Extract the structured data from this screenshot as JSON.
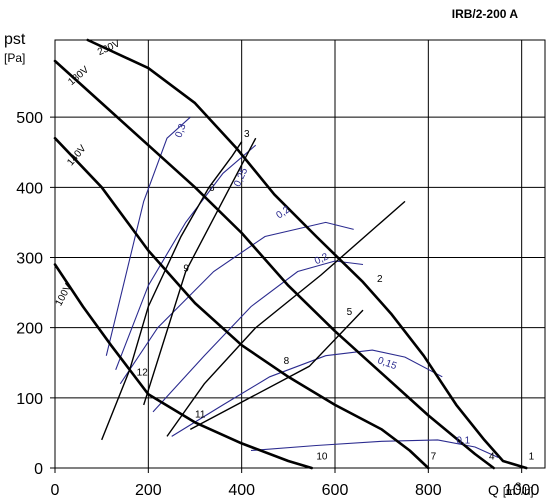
{
  "chart_data": {
    "type": "line",
    "title": "IRB/2-200 A",
    "ylabel": "pst",
    "ylabel_unit": "[Pa]",
    "xlabel": "Q",
    "xlabel_unit_prefix": "[m",
    "xlabel_unit_sup": "3",
    "xlabel_unit_suffix": "/h]",
    "xlim": [
      0,
      1050
    ],
    "ylim": [
      0,
      610
    ],
    "x_ticks": [
      0,
      200,
      400,
      600,
      800,
      1000
    ],
    "y_ticks": [
      0,
      100,
      200,
      300,
      400,
      500
    ],
    "grid": true,
    "fan_curves": [
      {
        "name": "230V",
        "points": [
          [
            70,
            610
          ],
          [
            200,
            570
          ],
          [
            300,
            520
          ],
          [
            390,
            455
          ],
          [
            470,
            390
          ],
          [
            560,
            330
          ],
          [
            660,
            265
          ],
          [
            720,
            220
          ],
          [
            790,
            160
          ],
          [
            860,
            90
          ],
          [
            920,
            40
          ],
          [
            960,
            10
          ],
          [
            1010,
            0
          ]
        ]
      },
      {
        "name": "180V",
        "points": [
          [
            0,
            580
          ],
          [
            100,
            520
          ],
          [
            200,
            460
          ],
          [
            300,
            400
          ],
          [
            400,
            335
          ],
          [
            500,
            260
          ],
          [
            600,
            195
          ],
          [
            700,
            135
          ],
          [
            800,
            75
          ],
          [
            900,
            20
          ],
          [
            940,
            0
          ]
        ]
      },
      {
        "name": "140V",
        "points": [
          [
            0,
            470
          ],
          [
            100,
            400
          ],
          [
            200,
            310
          ],
          [
            300,
            235
          ],
          [
            400,
            175
          ],
          [
            500,
            130
          ],
          [
            600,
            90
          ],
          [
            700,
            55
          ],
          [
            760,
            25
          ],
          [
            800,
            0
          ]
        ]
      },
      {
        "name": "100V",
        "points": [
          [
            0,
            290
          ],
          [
            60,
            230
          ],
          [
            120,
            175
          ],
          [
            200,
            105
          ],
          [
            300,
            65
          ],
          [
            400,
            35
          ],
          [
            500,
            10
          ],
          [
            550,
            0
          ]
        ]
      }
    ],
    "system_curves": [
      {
        "points": [
          [
            100,
            40
          ],
          [
            160,
            140
          ],
          [
            200,
            230
          ],
          [
            270,
            330
          ],
          [
            330,
            400
          ],
          [
            380,
            445
          ],
          [
            400,
            465
          ]
        ]
      },
      {
        "points": [
          [
            240,
            45
          ],
          [
            320,
            120
          ],
          [
            430,
            200
          ],
          [
            570,
            275
          ],
          [
            690,
            345
          ],
          [
            750,
            380
          ]
        ]
      }
    ],
    "system_lines": [
      {
        "points": [
          [
            430,
            470
          ],
          [
            280,
            280
          ],
          [
            190,
            90
          ]
        ]
      },
      {
        "points": [
          [
            660,
            225
          ],
          [
            545,
            145
          ],
          [
            290,
            55
          ]
        ]
      }
    ],
    "efficiency_curves": [
      {
        "name": "0,3",
        "points": [
          [
            110,
            160
          ],
          [
            150,
            270
          ],
          [
            190,
            380
          ],
          [
            240,
            470
          ],
          [
            290,
            500
          ]
        ]
      },
      {
        "name": "0,25",
        "points": [
          [
            130,
            140
          ],
          [
            200,
            260
          ],
          [
            280,
            350
          ],
          [
            360,
            420
          ],
          [
            430,
            460
          ]
        ]
      },
      {
        "name": "0,2",
        "points": [
          [
            140,
            120
          ],
          [
            220,
            200
          ],
          [
            340,
            280
          ],
          [
            450,
            330
          ],
          [
            580,
            350
          ],
          [
            640,
            340
          ]
        ]
      },
      {
        "name": "0,2",
        "points": [
          [
            210,
            80
          ],
          [
            320,
            160
          ],
          [
            420,
            230
          ],
          [
            520,
            280
          ],
          [
            600,
            295
          ],
          [
            660,
            290
          ]
        ]
      },
      {
        "name": "0,15",
        "points": [
          [
            250,
            45
          ],
          [
            360,
            90
          ],
          [
            460,
            130
          ],
          [
            580,
            160
          ],
          [
            680,
            168
          ],
          [
            750,
            158
          ],
          [
            830,
            130
          ]
        ]
      },
      {
        "name": "0,1",
        "points": [
          [
            420,
            25
          ],
          [
            560,
            32
          ],
          [
            700,
            38
          ],
          [
            820,
            40
          ],
          [
            900,
            30
          ],
          [
            950,
            15
          ]
        ]
      }
    ],
    "point_labels": [
      "1",
      "2",
      "3",
      "4",
      "5",
      "6",
      "7",
      "8",
      "9",
      "10",
      "11",
      "12"
    ]
  }
}
